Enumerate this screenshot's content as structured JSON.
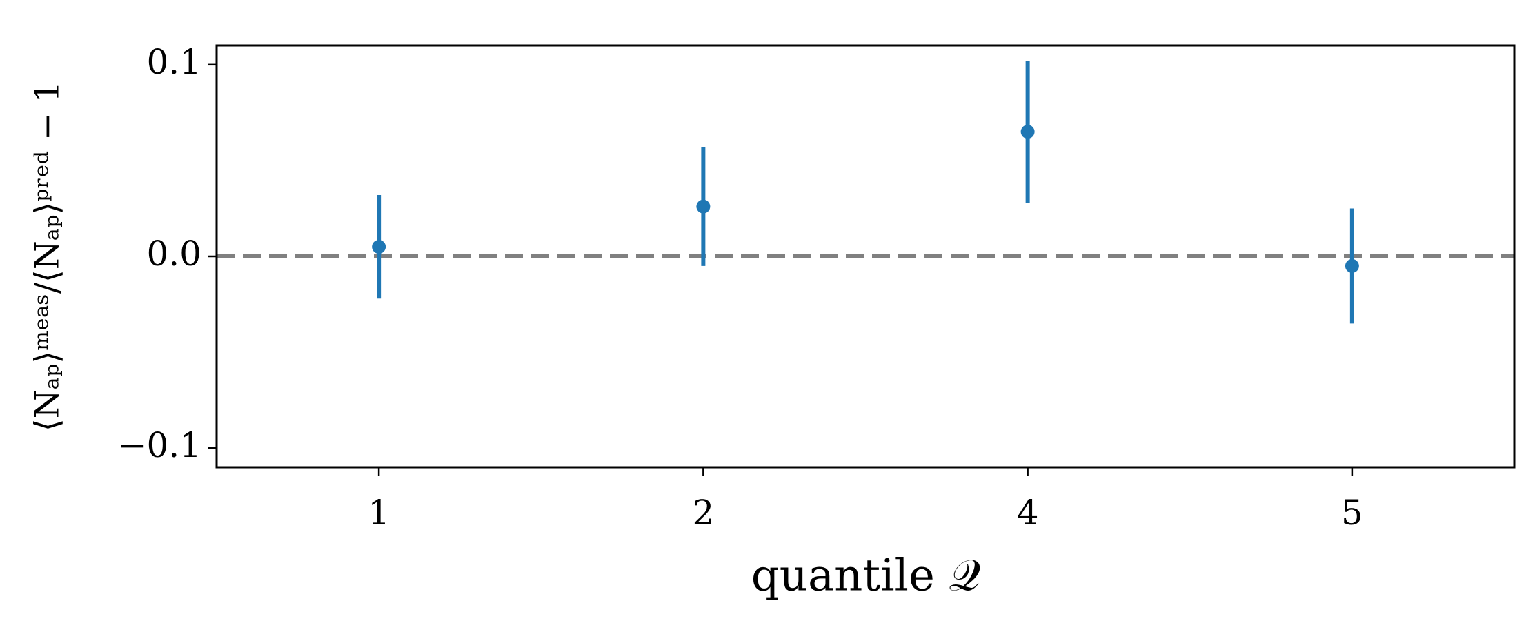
{
  "chart_data": {
    "type": "errorbar",
    "x_label": "quantile 𝒬",
    "y_label": "⟨Nₐₚ⟩ᵐᵉᵃˢ/⟨Nₐₚ⟩ᵖʳᵉᵈ − 1",
    "categories": [
      "1",
      "2",
      "4",
      "5"
    ],
    "values": [
      0.005,
      0.026,
      0.065,
      -0.005
    ],
    "errors": [
      0.027,
      0.031,
      0.037,
      0.03
    ],
    "color": "#1f77b4",
    "reference_line": 0,
    "reference_color": "#808080",
    "ylim": [
      -0.11,
      0.11
    ],
    "yticks": [
      {
        "value": -0.1,
        "label": "−0.1"
      },
      {
        "value": 0,
        "label": "0.0"
      },
      0.1
    ],
    "grid": false
  }
}
